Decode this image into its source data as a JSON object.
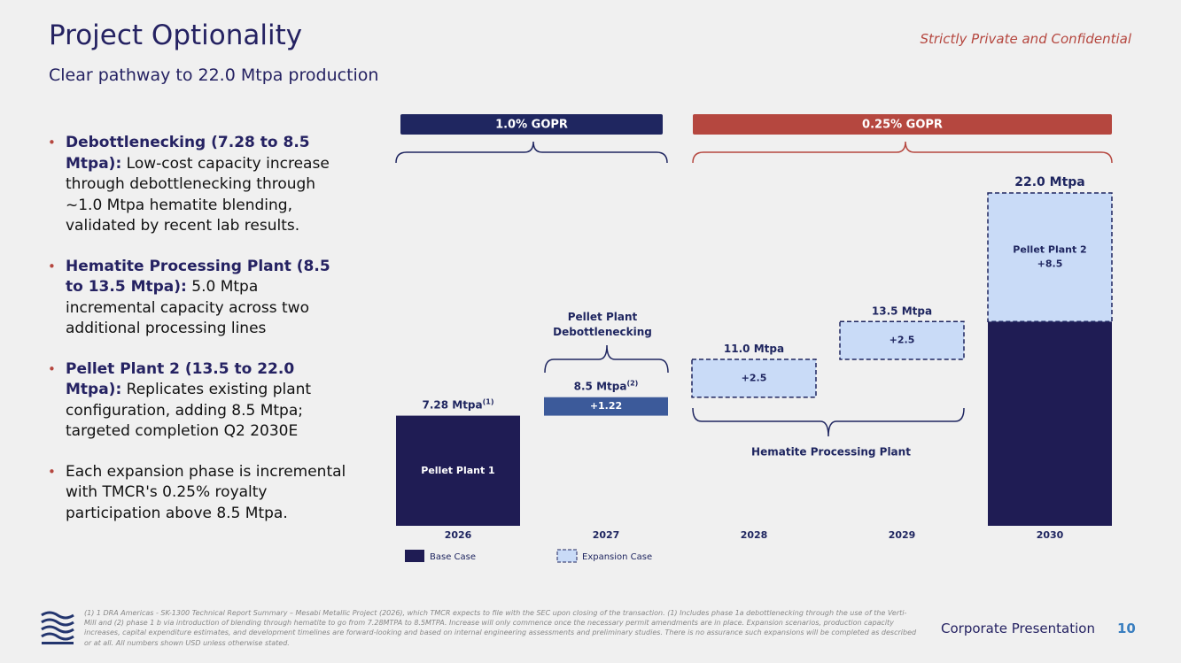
{
  "header": {
    "title": "Project Optionality",
    "subtitle": "Clear pathway to 22.0 Mtpa production",
    "confidential": "Strictly Private and Confidential"
  },
  "bullets": [
    {
      "lead": "Debottlenecking (7.28 to 8.5 Mtpa):",
      "text": "Low-cost capacity increase through debottlenecking through ~1.0 Mtpa hematite blending, validated by recent lab results."
    },
    {
      "lead": "Hematite Processing Plant (8.5 to 13.5 Mtpa):",
      "text": "5.0 Mtpa incremental capacity across two additional processing lines"
    },
    {
      "lead": "Pellet Plant 2 (13.5 to 22.0 Mtpa):",
      "text": "Replicates existing plant configuration, adding 8.5 Mtpa; targeted completion Q2 2030E"
    },
    {
      "lead": null,
      "text": "Each expansion phase is incremental with TMCR's 0.25% royalty participation above 8.5 Mtpa."
    }
  ],
  "chart_data": {
    "type": "waterfall",
    "categories": [
      "2026",
      "2027",
      "2028",
      "2029",
      "2030"
    ],
    "series": [
      {
        "name": "Base Case",
        "color": "#1f1c54",
        "values": [
          7.28,
          null,
          null,
          null,
          13.5
        ],
        "segment_labels": [
          "Pellet Plant 1",
          null,
          null,
          null,
          null
        ]
      },
      {
        "name": "Expansion Case",
        "color": "#c9dbf7",
        "values": [
          null,
          1.22,
          2.5,
          2.5,
          8.5
        ],
        "value_labels": [
          null,
          "+1.22",
          "+2.5",
          "+2.5",
          "+8.5"
        ],
        "segment_labels": [
          null,
          null,
          null,
          null,
          "Pellet Plant 2"
        ],
        "colors": [
          null,
          "#3c5a9a",
          "#c9dbf7",
          "#c9dbf7",
          "#c9dbf7"
        ],
        "dashed": [
          null,
          false,
          true,
          true,
          true
        ]
      }
    ],
    "total_labels": [
      "7.28 Mtpa",
      "8.5 Mtpa",
      "11.0 Mtpa",
      "13.5 Mtpa",
      "22.0 Mtpa"
    ],
    "total_notes": [
      "(1)",
      "(2)",
      null,
      null,
      null
    ],
    "royalties": [
      {
        "label": "1.0% GOPR",
        "color": "#1f2660"
      },
      {
        "label": "0.25% GOPR",
        "color": "#b5473f"
      }
    ],
    "annotations": [
      "Pellet Plant Debottlenecking",
      "Hematite Processing Plant"
    ]
  },
  "footer": {
    "note": "(1) 1 DRA Americas - SK-1300 Technical Report Summary – Mesabi Metallic Project (2026), which TMCR expects to file with the SEC upon closing of the transaction. (1) Includes phase 1a debottlenecking through the use of the Verti-Mill and (2) phase 1 b via introduction of blending through hematite to go from 7.28MTPA to 8.5MTPA. Increase will only commence once the necessary permit amendments are in place. Expansion scenarios, production capacity increases, capital expenditure estimates, and development timelines are forward-looking and based on internal engineering assessments and preliminary studies. There is no assurance such expansions will be completed as described or at all. All numbers shown USD unless otherwise stated.",
    "label": "Corporate Presentation",
    "page": "10"
  }
}
